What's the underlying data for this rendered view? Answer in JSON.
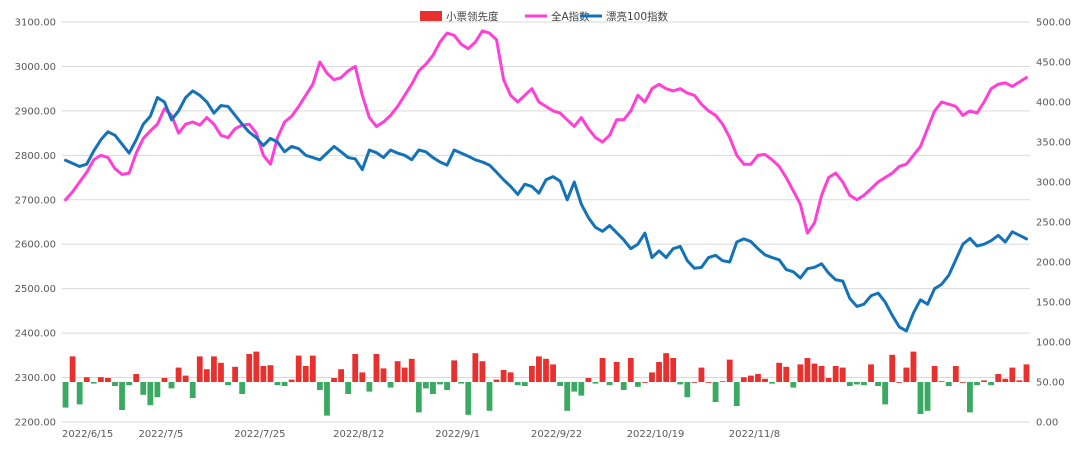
{
  "chart_data": {
    "type": "combo",
    "legend": {
      "placement": "top-center",
      "items": [
        {
          "name": "小票领先度",
          "kind": "bar",
          "color": "#e8302f"
        },
        {
          "name": "全A指数",
          "kind": "line",
          "color": "#ff3fd6"
        },
        {
          "name": "漂亮100指数",
          "kind": "line",
          "color": "#1472b8"
        }
      ]
    },
    "x_tick_labels": [
      "2022/6/15",
      "2022/7/5",
      "2022/7/25",
      "2022/8/12",
      "2022/9/1",
      "2022/9/22",
      "2022/10/19",
      "2022/11/8"
    ],
    "x_tick_indices": [
      0,
      14,
      28,
      42,
      56,
      70,
      84,
      98
    ],
    "left_axis": {
      "min": 2200,
      "max": 3100,
      "step": 100,
      "tick_labels": [
        "2200.00",
        "2300.00",
        "2400.00",
        "2500.00",
        "2600.00",
        "2700.00",
        "2800.00",
        "2900.00",
        "3000.00",
        "3100.00"
      ]
    },
    "right_axis": {
      "min": 0,
      "max": 500,
      "step": 50,
      "tick_labels": [
        "0.00",
        "50.00",
        "100.00",
        "150.00",
        "200.00",
        "250.00",
        "300.00",
        "350.00",
        "400.00",
        "450.00",
        "500.00"
      ]
    },
    "grid": true,
    "series": [
      {
        "name": "全A指数",
        "axis": "left",
        "color": "#ff3fd6",
        "values": [
          2700,
          2718,
          2740,
          2762,
          2790,
          2800,
          2795,
          2770,
          2757,
          2760,
          2805,
          2838,
          2855,
          2870,
          2905,
          2890,
          2850,
          2870,
          2875,
          2868,
          2885,
          2870,
          2845,
          2840,
          2860,
          2868,
          2870,
          2850,
          2800,
          2780,
          2840,
          2875,
          2888,
          2910,
          2935,
          2960,
          3010,
          2985,
          2970,
          2975,
          2990,
          3000,
          2935,
          2885,
          2865,
          2875,
          2890,
          2910,
          2935,
          2960,
          2990,
          3005,
          3025,
          3055,
          3075,
          3070,
          3050,
          3040,
          3055,
          3080,
          3075,
          3060,
          2970,
          2935,
          2920,
          2935,
          2950,
          2920,
          2910,
          2900,
          2895,
          2880,
          2865,
          2885,
          2860,
          2840,
          2830,
          2845,
          2880,
          2880,
          2900,
          2935,
          2920,
          2950,
          2960,
          2950,
          2945,
          2950,
          2940,
          2935,
          2915,
          2900,
          2890,
          2870,
          2840,
          2800,
          2780,
          2780,
          2800,
          2802,
          2790,
          2775,
          2750,
          2720,
          2690,
          2625,
          2648,
          2710,
          2750,
          2760,
          2740,
          2710,
          2700,
          2710,
          2725,
          2740,
          2750,
          2760,
          2775,
          2780,
          2800,
          2820,
          2860,
          2900,
          2920,
          2915,
          2910,
          2890,
          2900,
          2895,
          2920,
          2950,
          2960,
          2963,
          2955,
          2965,
          2975
        ]
      },
      {
        "name": "漂亮100指数",
        "axis": "left",
        "color": "#1472b8",
        "values": [
          2789,
          2782,
          2775,
          2780,
          2810,
          2835,
          2853,
          2845,
          2825,
          2805,
          2835,
          2870,
          2888,
          2930,
          2920,
          2880,
          2900,
          2930,
          2945,
          2935,
          2920,
          2895,
          2912,
          2910,
          2890,
          2870,
          2852,
          2840,
          2822,
          2838,
          2830,
          2808,
          2820,
          2815,
          2800,
          2795,
          2790,
          2805,
          2820,
          2808,
          2795,
          2792,
          2768,
          2812,
          2806,
          2795,
          2812,
          2805,
          2800,
          2790,
          2812,
          2808,
          2795,
          2785,
          2778,
          2812,
          2805,
          2798,
          2790,
          2785,
          2778,
          2762,
          2745,
          2730,
          2712,
          2735,
          2730,
          2715,
          2745,
          2752,
          2742,
          2700,
          2740,
          2690,
          2660,
          2638,
          2629,
          2642,
          2626,
          2610,
          2590,
          2600,
          2625,
          2570,
          2585,
          2570,
          2590,
          2595,
          2563,
          2546,
          2548,
          2570,
          2575,
          2563,
          2560,
          2605,
          2612,
          2606,
          2590,
          2576,
          2570,
          2565,
          2543,
          2538,
          2524,
          2545,
          2548,
          2556,
          2535,
          2520,
          2517,
          2478,
          2460,
          2465,
          2484,
          2490,
          2470,
          2440,
          2414,
          2405,
          2445,
          2475,
          2465,
          2500,
          2510,
          2530,
          2565,
          2600,
          2613,
          2596,
          2600,
          2608,
          2620,
          2605,
          2628,
          2620,
          2612
        ]
      },
      {
        "name": "小票领先度",
        "axis": "right",
        "color_positive": "#e8302f",
        "color_negative": "#3aa962",
        "values": [
          18,
          82,
          22,
          56,
          48,
          56,
          55,
          45,
          15,
          46,
          60,
          34,
          21,
          31,
          55,
          42,
          68,
          58,
          30,
          82,
          66,
          82,
          74,
          46,
          69,
          35,
          85,
          88,
          70,
          71,
          46,
          45,
          53,
          83,
          70,
          83,
          40,
          8,
          55,
          66,
          35,
          85,
          62,
          38,
          85,
          67,
          43,
          76,
          68,
          79,
          12,
          42,
          35,
          47,
          40,
          77,
          48,
          9,
          86,
          76,
          14,
          53,
          65,
          62,
          46,
          45,
          70,
          82,
          79,
          72,
          45,
          14,
          38,
          33,
          55,
          48,
          80,
          46,
          75,
          40,
          80,
          44,
          50,
          62,
          75,
          86,
          80,
          47,
          31,
          50,
          68,
          50,
          25,
          51,
          78,
          20,
          56,
          58,
          60,
          54,
          48,
          74,
          69,
          43,
          72,
          80,
          73,
          70,
          55,
          70,
          68,
          45,
          47,
          46,
          72,
          45,
          22,
          84,
          50,
          68,
          88,
          10,
          14,
          70,
          51,
          45,
          70,
          50,
          12,
          46,
          52,
          46,
          60,
          54,
          68,
          52,
          72
        ]
      }
    ]
  }
}
